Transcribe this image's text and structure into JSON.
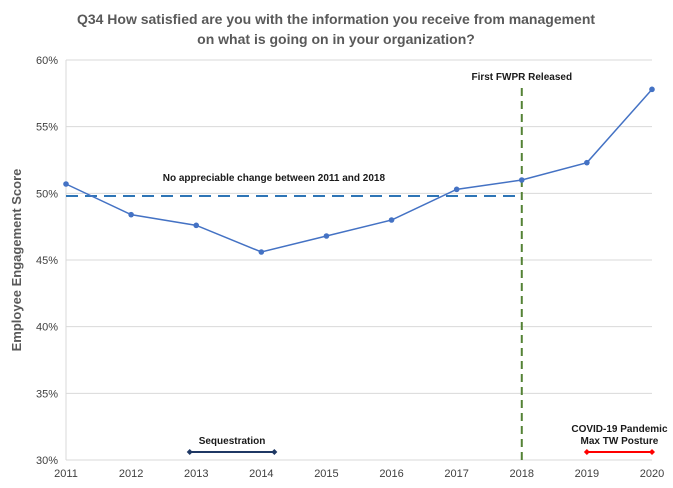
{
  "chart_data": {
    "type": "line",
    "title_lines": [
      "Q34 How satisfied are you with the information  you receive from management",
      "on what is going on in your organization?"
    ],
    "ylabel": "Employee  Engagement Score",
    "xlabel": "",
    "x": [
      2011,
      2012,
      2013,
      2014,
      2015,
      2016,
      2017,
      2018,
      2019,
      2020
    ],
    "y_tick_labels": [
      "30%",
      "35%",
      "40%",
      "45%",
      "50%",
      "55%",
      "60%"
    ],
    "y_ticks": [
      30,
      35,
      40,
      45,
      50,
      55,
      60
    ],
    "ylim": [
      30,
      60
    ],
    "xlim": [
      2011,
      2020
    ],
    "grid": true,
    "series": [
      {
        "values": [
          50.7,
          48.4,
          47.6,
          45.6,
          46.8,
          48.0,
          50.3,
          51.0,
          52.3,
          57.8
        ],
        "color": "#4472c4"
      }
    ],
    "reference_line": {
      "y": 49.8,
      "x_range": [
        2011,
        2018
      ],
      "color": "#2e75b6",
      "label": "No appreciable change between 2011 and 2018"
    },
    "vertical_marker": {
      "x": 2018,
      "color": "#548235",
      "label": "First FWPR Released"
    },
    "periods": [
      {
        "label_lines": [
          "Sequestration"
        ],
        "x_range": [
          2012.9,
          2014.2
        ],
        "y": 30.6,
        "color": "#1f3864"
      },
      {
        "label_lines": [
          "COVID-19 Pandemic",
          "Max TW Posture"
        ],
        "x_range": [
          2019.0,
          2020.0
        ],
        "y": 30.6,
        "color": "#ff0000"
      }
    ]
  }
}
